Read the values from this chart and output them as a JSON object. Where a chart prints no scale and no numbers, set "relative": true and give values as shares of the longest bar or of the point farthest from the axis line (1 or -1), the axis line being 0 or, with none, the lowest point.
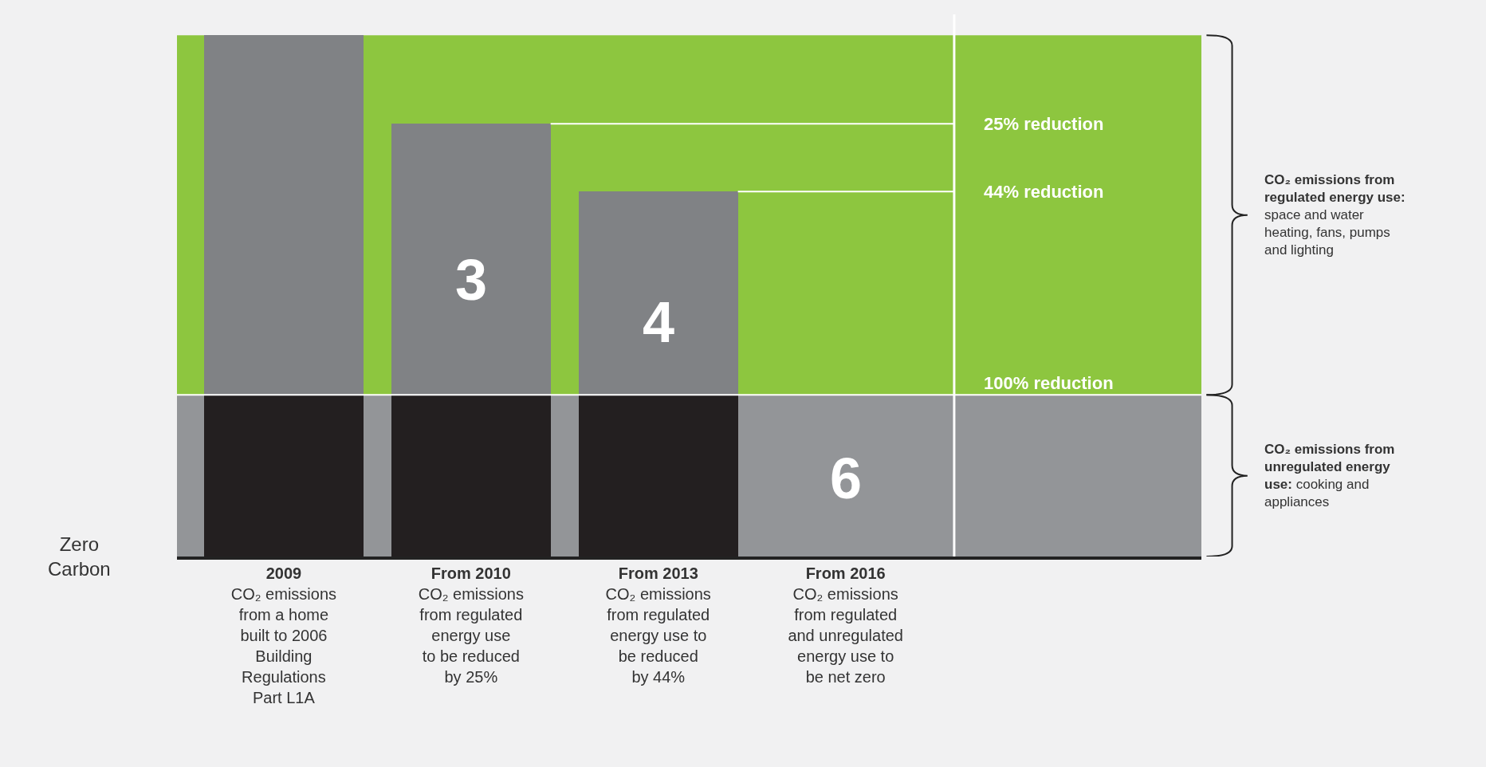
{
  "chart_data": {
    "type": "bar",
    "relative": true,
    "stacked": true,
    "categories": [
      "2009\nCO₂ emissions\nfrom a home\nbuilt to 2006\nBuilding\nRegulations\nPart L1A",
      "From 2010\nCO₂ emissions\nfrom regulated\nenergy use\nto be reduced\nby 25%",
      "From 2013\nCO₂ emissions\nfrom regulated\nenergy use to\nbe reduced\nby 44%",
      "From 2016\nCO₂ emissions\nfrom regulated\nand unregulated\nenergy use to\nbe net zero"
    ],
    "series": [
      {
        "color": "#231f20",
        "values": [
          0.31,
          0.31,
          0.31,
          0
        ]
      },
      {
        "color": "#808285",
        "values": [
          0.69,
          0.52,
          0.39,
          0
        ]
      }
    ],
    "bands": [
      {
        "axis": "y",
        "from": 0.31,
        "to": 1,
        "color": "#8dc63f"
      },
      {
        "axis": "y",
        "from": 0,
        "to": 0.31,
        "color": "#939598"
      }
    ],
    "ref_lines": [
      {
        "axis": "y",
        "value": 0.83,
        "label": "25% reduction",
        "color": "#ffffff"
      },
      {
        "axis": "y",
        "value": 0.7,
        "label": "44% reduction",
        "color": "#ffffff"
      },
      {
        "axis": "y",
        "value": 0.31,
        "label": "100% reduction",
        "color": "#ffffff"
      }
    ],
    "annotations": [
      "3",
      "4",
      "6",
      "Zero\nCarbon",
      "CO₂ emissions from regulated energy use: space and water heating, fans, pumps and lighting",
      "CO₂ emissions from unregulated energy use: cooking and appliances"
    ],
    "grid": false
  }
}
